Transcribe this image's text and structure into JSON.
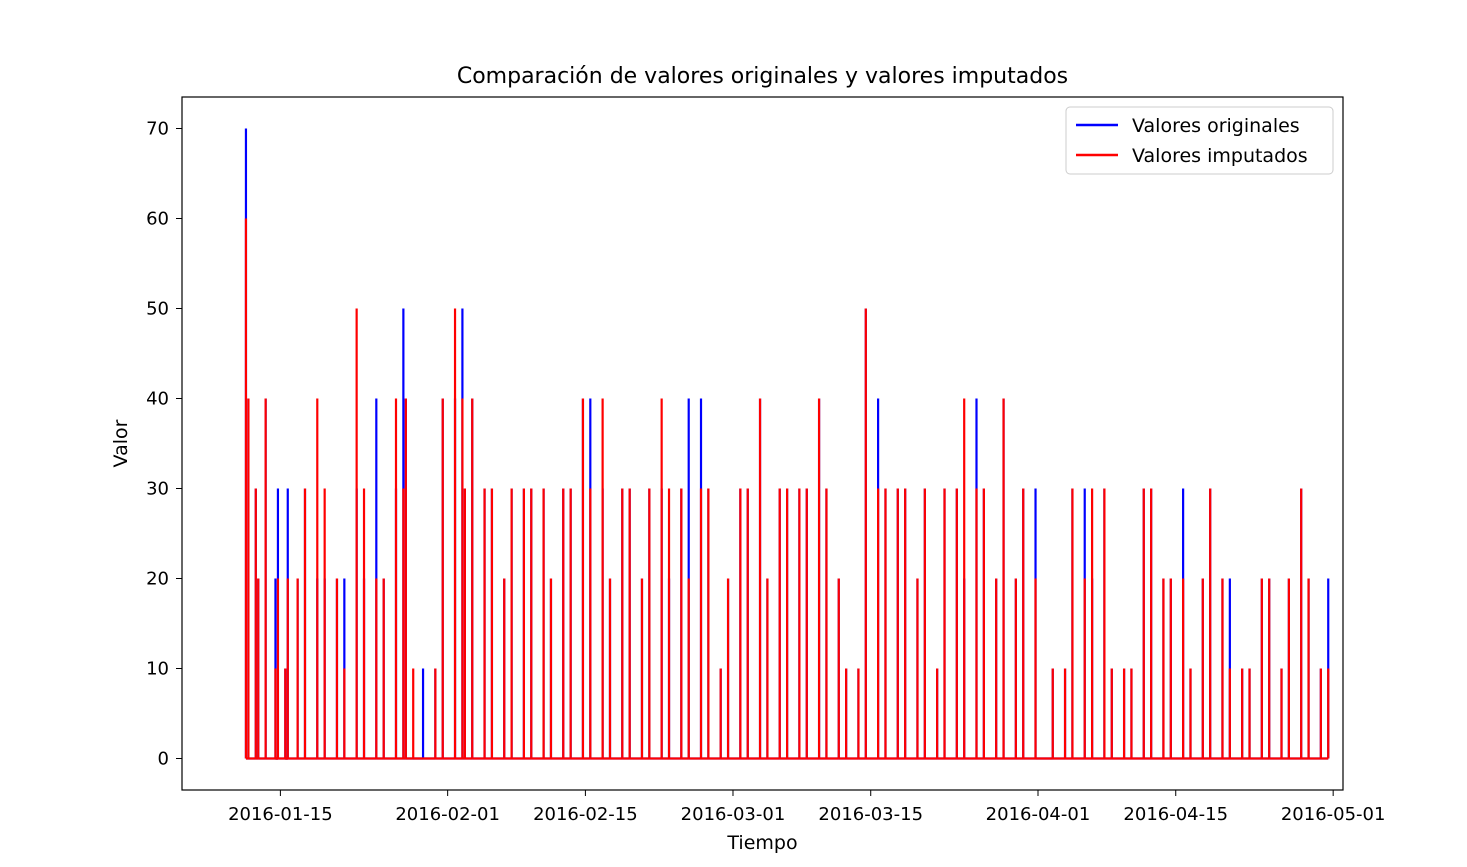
{
  "chart_data": {
    "type": "line",
    "title": "Comparación de valores originales y valores imputados",
    "xlabel": "Tiempo",
    "ylabel": "Valor",
    "xlim": [
      "2016-01-05",
      "2016-05-02"
    ],
    "ylim": [
      -3.5,
      73.5
    ],
    "xticks": [
      "2016-01-15",
      "2016-02-01",
      "2016-02-15",
      "2016-03-01",
      "2016-03-15",
      "2016-04-01",
      "2016-04-15",
      "2016-05-01"
    ],
    "yticks": [
      0,
      10,
      20,
      30,
      40,
      50,
      60,
      70
    ],
    "grid": false,
    "legend_position": "top-right",
    "series": [
      {
        "name": "Valores originales",
        "color": "#0000ff",
        "spikes": [
          [
            "2016-01-11",
            70
          ],
          [
            "2016-01-11",
            40
          ],
          [
            "2016-01-12",
            30
          ],
          [
            "2016-01-12",
            20
          ],
          [
            "2016-01-13",
            40
          ],
          [
            "2016-01-14",
            30
          ],
          [
            "2016-01-14",
            20
          ],
          [
            "2016-01-15",
            30
          ],
          [
            "2016-01-15",
            10
          ],
          [
            "2016-01-16",
            20
          ],
          [
            "2016-01-17",
            30
          ],
          [
            "2016-01-18",
            20
          ],
          [
            "2016-01-19",
            20
          ],
          [
            "2016-01-20",
            20
          ],
          [
            "2016-01-21",
            20
          ],
          [
            "2016-01-22",
            30
          ],
          [
            "2016-01-23",
            20
          ],
          [
            "2016-01-24",
            40
          ],
          [
            "2016-01-25",
            20
          ],
          [
            "2016-01-26",
            30
          ],
          [
            "2016-01-27",
            50
          ],
          [
            "2016-01-27",
            40
          ],
          [
            "2016-01-29",
            10
          ],
          [
            "2016-01-30",
            10
          ],
          [
            "2016-01-31",
            40
          ],
          [
            "2016-02-01",
            40
          ],
          [
            "2016-02-02",
            50
          ],
          [
            "2016-02-02",
            30
          ],
          [
            "2016-02-03",
            40
          ],
          [
            "2016-02-04",
            30
          ],
          [
            "2016-02-05",
            30
          ],
          [
            "2016-02-06",
            20
          ],
          [
            "2016-02-07",
            30
          ],
          [
            "2016-02-08",
            30
          ],
          [
            "2016-02-09",
            30
          ],
          [
            "2016-02-10",
            30
          ],
          [
            "2016-02-11",
            20
          ],
          [
            "2016-02-12",
            30
          ],
          [
            "2016-02-13",
            30
          ],
          [
            "2016-02-14",
            40
          ],
          [
            "2016-02-15",
            40
          ],
          [
            "2016-02-16",
            30
          ],
          [
            "2016-02-17",
            20
          ],
          [
            "2016-02-18",
            30
          ],
          [
            "2016-02-19",
            30
          ],
          [
            "2016-02-20",
            20
          ],
          [
            "2016-02-21",
            30
          ],
          [
            "2016-02-22",
            30
          ],
          [
            "2016-02-23",
            20
          ],
          [
            "2016-02-24",
            30
          ],
          [
            "2016-02-25",
            40
          ],
          [
            "2016-02-26",
            40
          ],
          [
            "2016-02-27",
            30
          ],
          [
            "2016-02-28",
            10
          ],
          [
            "2016-02-29",
            20
          ],
          [
            "2016-03-01",
            30
          ],
          [
            "2016-03-02",
            30
          ],
          [
            "2016-03-03",
            40
          ],
          [
            "2016-03-04",
            20
          ],
          [
            "2016-03-05",
            30
          ],
          [
            "2016-03-06",
            30
          ],
          [
            "2016-03-07",
            30
          ],
          [
            "2016-03-08",
            30
          ],
          [
            "2016-03-09",
            40
          ],
          [
            "2016-03-10",
            30
          ],
          [
            "2016-03-11",
            20
          ],
          [
            "2016-03-12",
            10
          ],
          [
            "2016-03-13",
            10
          ],
          [
            "2016-03-14",
            50
          ],
          [
            "2016-03-15",
            40
          ],
          [
            "2016-03-16",
            30
          ],
          [
            "2016-03-17",
            30
          ],
          [
            "2016-03-18",
            30
          ],
          [
            "2016-03-19",
            20
          ],
          [
            "2016-03-20",
            30
          ],
          [
            "2016-03-21",
            10
          ],
          [
            "2016-03-22",
            30
          ],
          [
            "2016-03-23",
            30
          ],
          [
            "2016-03-24",
            20
          ],
          [
            "2016-03-25",
            40
          ],
          [
            "2016-03-26",
            30
          ],
          [
            "2016-03-27",
            20
          ],
          [
            "2016-03-28",
            40
          ],
          [
            "2016-03-29",
            20
          ],
          [
            "2016-03-30",
            30
          ],
          [
            "2016-03-31",
            30
          ],
          [
            "2016-04-02",
            10
          ],
          [
            "2016-04-03",
            10
          ],
          [
            "2016-04-04",
            30
          ],
          [
            "2016-04-05",
            30
          ],
          [
            "2016-04-06",
            20
          ],
          [
            "2016-04-07",
            30
          ],
          [
            "2016-04-08",
            10
          ],
          [
            "2016-04-09",
            10
          ],
          [
            "2016-04-10",
            10
          ],
          [
            "2016-04-11",
            30
          ],
          [
            "2016-04-12",
            30
          ],
          [
            "2016-04-13",
            20
          ],
          [
            "2016-04-14",
            20
          ],
          [
            "2016-04-15",
            30
          ],
          [
            "2016-04-16",
            10
          ],
          [
            "2016-04-17",
            20
          ],
          [
            "2016-04-18",
            30
          ],
          [
            "2016-04-19",
            20
          ],
          [
            "2016-04-20",
            20
          ],
          [
            "2016-04-21",
            10
          ],
          [
            "2016-04-22",
            10
          ],
          [
            "2016-04-23",
            20
          ],
          [
            "2016-04-24",
            20
          ],
          [
            "2016-04-25",
            10
          ],
          [
            "2016-04-26",
            20
          ],
          [
            "2016-04-27",
            30
          ],
          [
            "2016-04-28",
            20
          ],
          [
            "2016-04-29",
            10
          ],
          [
            "2016-04-30",
            20
          ]
        ]
      },
      {
        "name": "Valores imputados",
        "color": "#ff0000",
        "spikes": [
          [
            "2016-01-11",
            60
          ],
          [
            "2016-01-11",
            40
          ],
          [
            "2016-01-12",
            30
          ],
          [
            "2016-01-12",
            20
          ],
          [
            "2016-01-13",
            40
          ],
          [
            "2016-01-14",
            20
          ],
          [
            "2016-01-14",
            10
          ],
          [
            "2016-01-15",
            20
          ],
          [
            "2016-01-15",
            10
          ],
          [
            "2016-01-16",
            20
          ],
          [
            "2016-01-17",
            30
          ],
          [
            "2016-01-18",
            40
          ],
          [
            "2016-01-19",
            30
          ],
          [
            "2016-01-20",
            20
          ],
          [
            "2016-01-21",
            10
          ],
          [
            "2016-01-22",
            50
          ],
          [
            "2016-01-23",
            30
          ],
          [
            "2016-01-24",
            20
          ],
          [
            "2016-01-25",
            20
          ],
          [
            "2016-01-26",
            40
          ],
          [
            "2016-01-27",
            30
          ],
          [
            "2016-01-27",
            40
          ],
          [
            "2016-01-28",
            10
          ],
          [
            "2016-01-30",
            10
          ],
          [
            "2016-01-31",
            40
          ],
          [
            "2016-02-01",
            50
          ],
          [
            "2016-02-02",
            40
          ],
          [
            "2016-02-02",
            30
          ],
          [
            "2016-02-03",
            40
          ],
          [
            "2016-02-04",
            30
          ],
          [
            "2016-02-05",
            30
          ],
          [
            "2016-02-06",
            20
          ],
          [
            "2016-02-07",
            30
          ],
          [
            "2016-02-08",
            30
          ],
          [
            "2016-02-09",
            30
          ],
          [
            "2016-02-10",
            30
          ],
          [
            "2016-02-11",
            20
          ],
          [
            "2016-02-12",
            30
          ],
          [
            "2016-02-13",
            30
          ],
          [
            "2016-02-14",
            40
          ],
          [
            "2016-02-15",
            30
          ],
          [
            "2016-02-16",
            40
          ],
          [
            "2016-02-17",
            20
          ],
          [
            "2016-02-18",
            30
          ],
          [
            "2016-02-19",
            30
          ],
          [
            "2016-02-20",
            20
          ],
          [
            "2016-02-21",
            30
          ],
          [
            "2016-02-22",
            40
          ],
          [
            "2016-02-23",
            30
          ],
          [
            "2016-02-24",
            30
          ],
          [
            "2016-02-25",
            20
          ],
          [
            "2016-02-26",
            30
          ],
          [
            "2016-02-27",
            30
          ],
          [
            "2016-02-28",
            10
          ],
          [
            "2016-02-29",
            20
          ],
          [
            "2016-03-01",
            30
          ],
          [
            "2016-03-02",
            30
          ],
          [
            "2016-03-03",
            40
          ],
          [
            "2016-03-04",
            20
          ],
          [
            "2016-03-05",
            30
          ],
          [
            "2016-03-06",
            30
          ],
          [
            "2016-03-07",
            30
          ],
          [
            "2016-03-08",
            30
          ],
          [
            "2016-03-09",
            40
          ],
          [
            "2016-03-10",
            30
          ],
          [
            "2016-03-11",
            20
          ],
          [
            "2016-03-12",
            10
          ],
          [
            "2016-03-13",
            10
          ],
          [
            "2016-03-14",
            50
          ],
          [
            "2016-03-15",
            30
          ],
          [
            "2016-03-16",
            30
          ],
          [
            "2016-03-17",
            30
          ],
          [
            "2016-03-18",
            30
          ],
          [
            "2016-03-19",
            20
          ],
          [
            "2016-03-20",
            30
          ],
          [
            "2016-03-21",
            10
          ],
          [
            "2016-03-22",
            30
          ],
          [
            "2016-03-23",
            30
          ],
          [
            "2016-03-24",
            40
          ],
          [
            "2016-03-25",
            30
          ],
          [
            "2016-03-26",
            30
          ],
          [
            "2016-03-27",
            20
          ],
          [
            "2016-03-28",
            40
          ],
          [
            "2016-03-29",
            20
          ],
          [
            "2016-03-30",
            30
          ],
          [
            "2016-03-31",
            20
          ],
          [
            "2016-04-02",
            10
          ],
          [
            "2016-04-03",
            10
          ],
          [
            "2016-04-04",
            30
          ],
          [
            "2016-04-05",
            20
          ],
          [
            "2016-04-06",
            30
          ],
          [
            "2016-04-07",
            30
          ],
          [
            "2016-04-08",
            10
          ],
          [
            "2016-04-09",
            10
          ],
          [
            "2016-04-10",
            10
          ],
          [
            "2016-04-11",
            30
          ],
          [
            "2016-04-12",
            30
          ],
          [
            "2016-04-13",
            20
          ],
          [
            "2016-04-14",
            20
          ],
          [
            "2016-04-15",
            20
          ],
          [
            "2016-04-16",
            10
          ],
          [
            "2016-04-17",
            20
          ],
          [
            "2016-04-18",
            30
          ],
          [
            "2016-04-19",
            20
          ],
          [
            "2016-04-20",
            10
          ],
          [
            "2016-04-21",
            10
          ],
          [
            "2016-04-22",
            10
          ],
          [
            "2016-04-23",
            20
          ],
          [
            "2016-04-24",
            20
          ],
          [
            "2016-04-25",
            10
          ],
          [
            "2016-04-26",
            20
          ],
          [
            "2016-04-27",
            30
          ],
          [
            "2016-04-28",
            20
          ],
          [
            "2016-04-29",
            10
          ],
          [
            "2016-04-30",
            10
          ]
        ]
      }
    ]
  }
}
